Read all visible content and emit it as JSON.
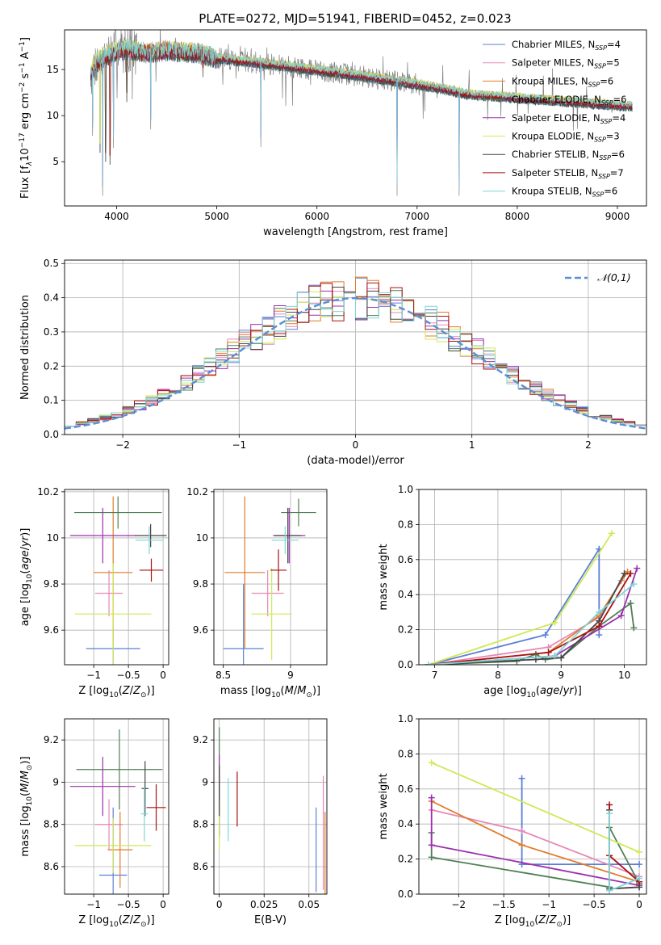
{
  "suptitle": "PLATE=0272, MJD=51941, FIBERID=0452, z=0.023",
  "colors": {
    "chabrier_miles": "#5b7fd6",
    "salpeter_miles": "#e589b7",
    "kroupa_miles": "#e07b2a",
    "chabrier_elodie": "#4f7f55",
    "salpeter_elodie": "#9c2fae",
    "kroupa_elodie": "#cdea55",
    "chabrier_stelib": "#444444",
    "salpeter_stelib": "#aa1111",
    "kroupa_stelib": "#7fd6d8",
    "data_spectrum": "#808080",
    "normal_curve": "#5b8ed6",
    "grid": "#b0b0b0"
  },
  "chart_data": [
    {
      "id": "spectrum",
      "type": "line",
      "xlabel": "wavelength [Angstrom, rest frame]",
      "ylabel": "Flux [f_λ 10^-17 erg cm^-2 s^-1 A^-1]",
      "xlim": [
        3480,
        9290
      ],
      "ylim": [
        0.2,
        19.3
      ],
      "xticks": [
        4000,
        5000,
        6000,
        7000,
        8000,
        9000
      ],
      "yticks": [
        5,
        10,
        15
      ],
      "grid": false,
      "legend_position": "upper right",
      "legend": [
        {
          "key": "chabrier_miles",
          "name": "Chabrier MILES, N",
          "sub": "SSP",
          "n": "=4"
        },
        {
          "key": "salpeter_miles",
          "name": "Salpeter MILES, N",
          "sub": "SSP",
          "n": "=5"
        },
        {
          "key": "kroupa_miles",
          "name": "Kroupa MILES, N",
          "sub": "SSP",
          "n": "=6"
        },
        {
          "key": "chabrier_elodie",
          "name": "Chabrier ELODIE, N",
          "sub": "SSP",
          "n": "=6"
        },
        {
          "key": "salpeter_elodie",
          "name": "Salpeter ELODIE, N",
          "sub": "SSP",
          "n": "=4"
        },
        {
          "key": "kroupa_elodie",
          "name": "Kroupa ELODIE, N",
          "sub": "SSP",
          "n": "=3"
        },
        {
          "key": "chabrier_stelib",
          "name": "Chabrier STELIB, N",
          "sub": "SSP",
          "n": "=6"
        },
        {
          "key": "salpeter_stelib",
          "name": "Salpeter STELIB, N",
          "sub": "SSP",
          "n": "=7"
        },
        {
          "key": "kroupa_stelib",
          "name": "Kroupa STELIB, N",
          "sub": "SSP",
          "n": "=6"
        }
      ],
      "continuum": [
        [
          3740,
          14.5
        ],
        [
          3800,
          15.8
        ],
        [
          3900,
          16.5
        ],
        [
          4000,
          17.0
        ],
        [
          4100,
          17.2
        ],
        [
          4300,
          16.8
        ],
        [
          4500,
          17.0
        ],
        [
          4800,
          16.8
        ],
        [
          5000,
          16.2
        ],
        [
          5500,
          15.6
        ],
        [
          6000,
          14.9
        ],
        [
          6500,
          14.2
        ],
        [
          7000,
          13.4
        ],
        [
          7300,
          12.8
        ],
        [
          7500,
          12.3
        ],
        [
          8000,
          11.9
        ],
        [
          8500,
          11.5
        ],
        [
          9000,
          11.1
        ],
        [
          9150,
          11.0
        ]
      ],
      "deep_lines": [
        [
          3760,
          6.8
        ],
        [
          3835,
          5.0
        ],
        [
          3860,
          0.3
        ],
        [
          3890,
          4.0
        ],
        [
          3933,
          3.7
        ],
        [
          3968,
          5.5
        ],
        [
          4102,
          10.5
        ],
        [
          4340,
          7.5
        ],
        [
          4861,
          13.2
        ],
        [
          5175,
          14.4
        ],
        [
          5440,
          5.6
        ],
        [
          6563,
          14.0
        ],
        [
          6800,
          0.3
        ],
        [
          7420,
          0.3
        ],
        [
          8450,
          10.8
        ]
      ]
    },
    {
      "id": "residual_histogram",
      "type": "histogram",
      "xlabel": "(data-model)/error",
      "ylabel": "Normed distribution",
      "xlim": [
        -2.5,
        2.5
      ],
      "ylim": [
        0,
        0.51
      ],
      "xticks": [
        -2,
        -1,
        0,
        1,
        2
      ],
      "yticks": [
        0.0,
        0.1,
        0.2,
        0.3,
        0.4,
        0.5
      ],
      "grid": true,
      "legend_position": "upper right",
      "legend_label": "𝒩(0,1)",
      "bin_width": 0.1,
      "bin_range": [
        -2.5,
        2.5
      ]
    },
    {
      "id": "age_vs_Z",
      "type": "errorbar",
      "xlabel": "Z [log10(Z/Z⊙)]",
      "ylabel": "age [log10(age/yr)]",
      "xlim": [
        -1.42,
        0.08
      ],
      "ylim": [
        9.45,
        10.21
      ],
      "xticks": [
        -1.0,
        -0.5,
        0.0
      ],
      "yticks": [
        9.6,
        9.8,
        10.0,
        10.2
      ],
      "grid": true,
      "points": [
        {
          "key": "chabrier_miles",
          "x": -0.72,
          "y": 9.52,
          "xerr": 0.39,
          "yerr": 0.1
        },
        {
          "key": "salpeter_miles",
          "x": -0.78,
          "y": 9.76,
          "xerr": 0.2,
          "yerr": 0.1
        },
        {
          "key": "kroupa_miles",
          "x": -0.72,
          "y": 9.85,
          "xerr": 0.28,
          "yerr": 0.33
        },
        {
          "key": "chabrier_elodie",
          "x": -0.65,
          "y": 10.11,
          "xerr": 0.63,
          "yerr": 0.07
        },
        {
          "key": "salpeter_elodie",
          "x": -0.87,
          "y": 10.01,
          "xerr": 0.47,
          "yerr": 0.12
        },
        {
          "key": "kroupa_elodie",
          "x": -0.72,
          "y": 9.67,
          "xerr": 0.55,
          "yerr": 0.22
        },
        {
          "key": "chabrier_stelib",
          "x": -0.18,
          "y": 10.01,
          "xerr": 0.23,
          "yerr": 0.05
        },
        {
          "key": "salpeter_stelib",
          "x": -0.17,
          "y": 9.86,
          "xerr": 0.17,
          "yerr": 0.05
        },
        {
          "key": "kroupa_stelib",
          "x": -0.2,
          "y": 9.99,
          "xerr": 0.2,
          "yerr": 0.06
        }
      ]
    },
    {
      "id": "age_vs_mass",
      "type": "errorbar",
      "xlabel": "mass [log10(M/M⊙)]",
      "ylabel": "",
      "xlim": [
        8.43,
        9.27
      ],
      "ylim": [
        9.45,
        10.21
      ],
      "xticks": [
        8.5,
        9.0
      ],
      "yticks": [
        9.6,
        9.8,
        10.0,
        10.2
      ],
      "grid": true,
      "points": [
        {
          "key": "chabrier_miles",
          "x": 8.65,
          "y": 9.52,
          "xerr": 0.15,
          "yerr": 0.28
        },
        {
          "key": "salpeter_miles",
          "x": 8.83,
          "y": 9.76,
          "xerr": 0.12,
          "yerr": 0.1
        },
        {
          "key": "kroupa_miles",
          "x": 8.66,
          "y": 9.85,
          "xerr": 0.15,
          "yerr": 0.33
        },
        {
          "key": "chabrier_elodie",
          "x": 9.06,
          "y": 10.11,
          "xerr": 0.13,
          "yerr": 0.06
        },
        {
          "key": "salpeter_elodie",
          "x": 8.99,
          "y": 10.01,
          "xerr": 0.12,
          "yerr": 0.12
        },
        {
          "key": "kroupa_elodie",
          "x": 8.86,
          "y": 9.67,
          "xerr": 0.15,
          "yerr": 0.2
        },
        {
          "key": "chabrier_stelib",
          "x": 8.98,
          "y": 10.01,
          "xerr": 0.1,
          "yerr": 0.12
        },
        {
          "key": "salpeter_stelib",
          "x": 8.91,
          "y": 9.86,
          "xerr": 0.06,
          "yerr": 0.09
        },
        {
          "key": "kroupa_stelib",
          "x": 8.96,
          "y": 9.99,
          "xerr": 0.1,
          "yerr": 0.06
        }
      ]
    },
    {
      "id": "mass_weight_vs_age",
      "type": "line",
      "xlabel": "age [log10(age/yr)]",
      "ylabel": "mass weight",
      "xlim": [
        6.75,
        10.35
      ],
      "ylim": [
        0,
        1.0
      ],
      "xticks": [
        7,
        8,
        9,
        10
      ],
      "yticks": [
        0.0,
        0.2,
        0.4,
        0.6,
        0.8,
        1.0
      ],
      "grid": true,
      "series": [
        {
          "key": "chabrier_miles",
          "x": [
            6.9,
            8.75,
            9.6,
            9.6
          ],
          "y": [
            0.0,
            0.17,
            0.66,
            0.17
          ]
        },
        {
          "key": "salpeter_miles",
          "x": [
            6.9,
            8.8,
            9.6,
            9.95
          ],
          "y": [
            0.0,
            0.1,
            0.27,
            0.48
          ]
        },
        {
          "key": "kroupa_miles",
          "x": [
            6.9,
            8.8,
            9.6,
            10.05
          ],
          "y": [
            0.0,
            0.07,
            0.28,
            0.53
          ]
        },
        {
          "key": "chabrier_elodie",
          "x": [
            6.9,
            8.3,
            8.6,
            8.75,
            9.0,
            9.6,
            10.1,
            10.15
          ],
          "y": [
            0.0,
            0.02,
            0.06,
            0.03,
            0.04,
            0.22,
            0.35,
            0.21
          ]
        },
        {
          "key": "salpeter_elodie",
          "x": [
            6.9,
            8.9,
            9.95,
            10.2
          ],
          "y": [
            0.0,
            0.05,
            0.28,
            0.55
          ]
        },
        {
          "key": "kroupa_elodie",
          "x": [
            6.9,
            8.9,
            9.8
          ],
          "y": [
            0.0,
            0.24,
            0.75
          ]
        },
        {
          "key": "chabrier_stelib",
          "x": [
            6.9,
            8.6,
            9.0,
            9.6,
            10.0
          ],
          "y": [
            0.0,
            0.03,
            0.04,
            0.25,
            0.52
          ]
        },
        {
          "key": "salpeter_stelib",
          "x": [
            6.9,
            8.8,
            9.6,
            10.1
          ],
          "y": [
            0.0,
            0.07,
            0.22,
            0.52
          ]
        },
        {
          "key": "kroupa_stelib",
          "x": [
            6.9,
            8.9,
            9.6,
            10.15
          ],
          "y": [
            0.0,
            0.05,
            0.3,
            0.46
          ]
        }
      ]
    },
    {
      "id": "mass_vs_Z",
      "type": "errorbar",
      "xlabel": "Z [log10(Z/Z⊙)]",
      "ylabel": "mass [log10(M/M⊙)]",
      "xlim": [
        -1.42,
        0.08
      ],
      "ylim": [
        8.47,
        9.3
      ],
      "xticks": [
        -1.0,
        -0.5,
        0.0
      ],
      "yticks": [
        8.6,
        8.8,
        9.0,
        9.2
      ],
      "grid": true,
      "points": [
        {
          "key": "chabrier_miles",
          "x": -0.72,
          "y": 8.56,
          "xerr": 0.2,
          "yerr": 0.32
        },
        {
          "key": "salpeter_miles",
          "x": -0.78,
          "y": 8.8,
          "xerr": 0.2,
          "yerr": 0.12
        },
        {
          "key": "kroupa_miles",
          "x": -0.62,
          "y": 8.68,
          "xerr": 0.18,
          "yerr": 0.18
        },
        {
          "key": "chabrier_elodie",
          "x": -0.63,
          "y": 9.06,
          "xerr": 0.62,
          "yerr": 0.19
        },
        {
          "key": "salpeter_elodie",
          "x": -0.87,
          "y": 8.98,
          "xerr": 0.47,
          "yerr": 0.14
        },
        {
          "key": "kroupa_elodie",
          "x": -0.72,
          "y": 8.7,
          "xerr": 0.55,
          "yerr": 0.13
        },
        {
          "key": "chabrier_stelib",
          "x": -0.26,
          "y": 8.97,
          "xerr": 0.05,
          "yerr": 0.13
        },
        {
          "key": "salpeter_stelib",
          "x": -0.1,
          "y": 8.88,
          "xerr": 0.14,
          "yerr": 0.11
        },
        {
          "key": "kroupa_stelib",
          "x": -0.27,
          "y": 8.85,
          "xerr": 0.05,
          "yerr": 0.13
        }
      ]
    },
    {
      "id": "mass_vs_ebv",
      "type": "errorbar",
      "xlabel": "E(B-V)",
      "ylabel": "",
      "xlim": [
        -0.003,
        0.06
      ],
      "ylim": [
        8.47,
        9.3
      ],
      "xticks": [
        0.0,
        0.025,
        0.05
      ],
      "yticks": [
        8.6,
        8.8,
        9.0,
        9.2
      ],
      "grid": true,
      "points": [
        {
          "key": "chabrier_miles",
          "x": 0.054,
          "y": 8.68,
          "xerr": 0,
          "yerr": 0.2
        },
        {
          "key": "salpeter_miles",
          "x": 0.058,
          "y": 8.76,
          "xerr": 0,
          "yerr": 0.27
        },
        {
          "key": "kroupa_miles",
          "x": 0.059,
          "y": 8.66,
          "xerr": 0,
          "yerr": 0.2
        },
        {
          "key": "chabrier_elodie",
          "x": 0.0,
          "y": 9.0,
          "xerr": 0,
          "yerr": 0.26
        },
        {
          "key": "salpeter_elodie",
          "x": 0.0,
          "y": 8.94,
          "xerr": 0,
          "yerr": 0.19
        },
        {
          "key": "kroupa_elodie",
          "x": 0.0,
          "y": 8.8,
          "xerr": 0,
          "yerr": 0.12
        },
        {
          "key": "chabrier_stelib",
          "x": 0.0,
          "y": 8.96,
          "xerr": 0,
          "yerr": 0.12
        },
        {
          "key": "salpeter_stelib",
          "x": 0.01,
          "y": 8.92,
          "xerr": 0,
          "yerr": 0.13
        },
        {
          "key": "kroupa_stelib",
          "x": 0.005,
          "y": 8.87,
          "xerr": 0,
          "yerr": 0.15
        }
      ]
    },
    {
      "id": "mass_weight_vs_Z",
      "type": "line",
      "xlabel": "Z [log10(Z/Z⊙)]",
      "ylabel": "mass weight",
      "xlim": [
        -2.44,
        0.08
      ],
      "ylim": [
        0,
        1.0
      ],
      "xticks": [
        -2.0,
        -1.5,
        -1.0,
        -0.5,
        0.0
      ],
      "yticks": [
        0.0,
        0.2,
        0.4,
        0.6,
        0.8,
        1.0
      ],
      "grid": true,
      "series": [
        {
          "key": "chabrier_miles",
          "x": [
            -1.3,
            -1.3,
            -0.33,
            0.0
          ],
          "y": [
            0.66,
            0.17,
            0.17,
            0.17
          ]
        },
        {
          "key": "salpeter_miles",
          "x": [
            -2.3,
            -1.3,
            0.0
          ],
          "y": [
            0.48,
            0.36,
            0.1
          ]
        },
        {
          "key": "kroupa_miles",
          "x": [
            -2.3,
            -1.3,
            0.0
          ],
          "y": [
            0.53,
            0.28,
            0.07
          ]
        },
        {
          "key": "chabrier_elodie",
          "x": [
            -2.3,
            -2.3,
            -0.33,
            -0.33,
            0.0
          ],
          "y": [
            0.35,
            0.21,
            0.04,
            0.38,
            0.06
          ]
        },
        {
          "key": "salpeter_elodie",
          "x": [
            -2.3,
            -2.3,
            0.0
          ],
          "y": [
            0.55,
            0.28,
            0.05
          ]
        },
        {
          "key": "kroupa_elodie",
          "x": [
            -2.3,
            0.0
          ],
          "y": [
            0.75,
            0.24
          ]
        },
        {
          "key": "chabrier_stelib",
          "x": [
            -0.33,
            -0.33,
            0.0
          ],
          "y": [
            0.48,
            0.03,
            0.04
          ]
        },
        {
          "key": "salpeter_stelib",
          "x": [
            -0.33,
            -0.33,
            0.0
          ],
          "y": [
            0.51,
            0.22,
            0.07
          ]
        },
        {
          "key": "kroupa_stelib",
          "x": [
            -0.33,
            -0.33,
            0.0
          ],
          "y": [
            0.46,
            0.02,
            0.09
          ]
        }
      ]
    }
  ]
}
